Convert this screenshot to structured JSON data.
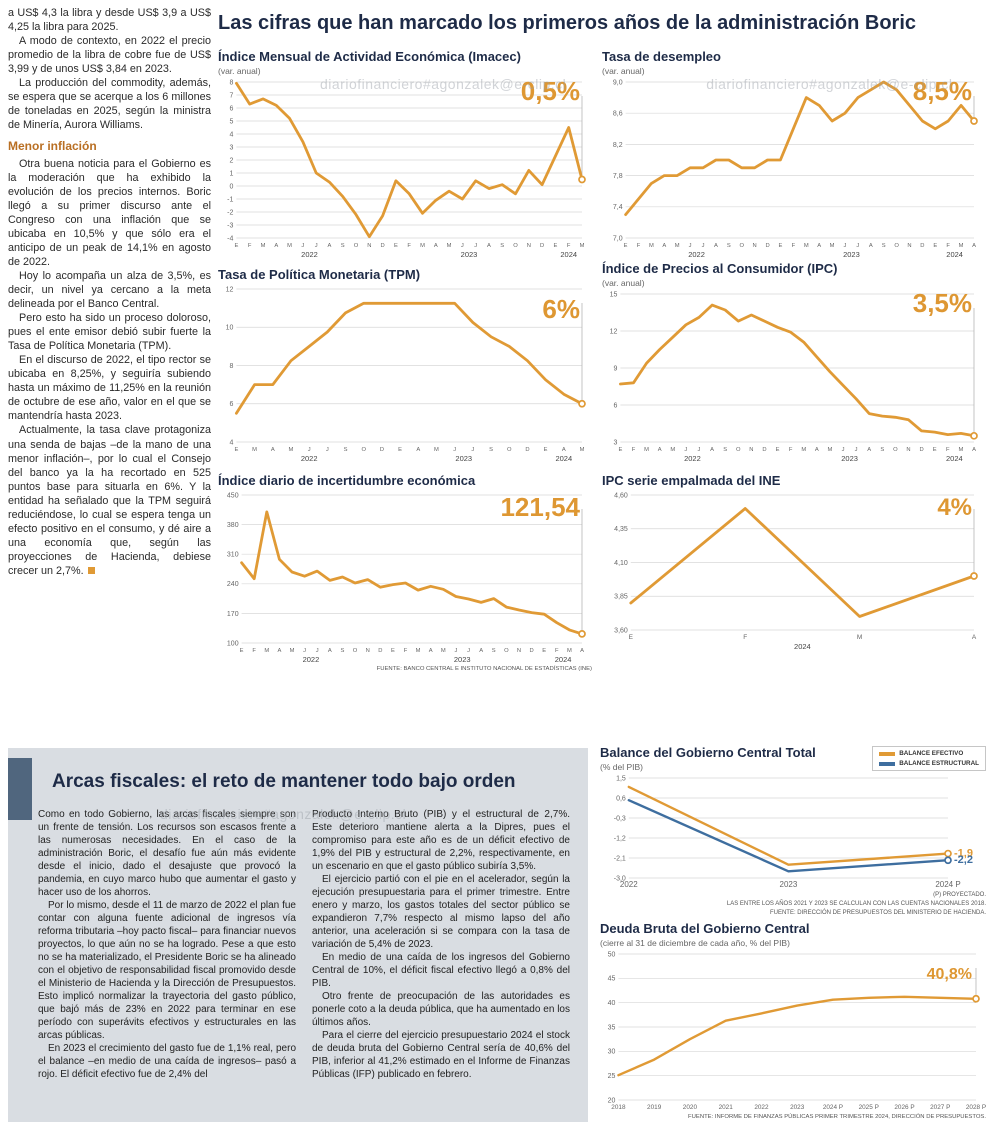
{
  "watermark": "diariofinanciero#agonzalek@e-clip.cl",
  "headline": "Las cifras que han marcado los primeros años de la administración Boric",
  "intro": {
    "paragraphs": [
      "a US$ 4,3 la libra y desde US$ 3,9 a US$ 4,25 la libra para 2025.",
      "A modo de contexto, en 2022 el precio promedio de la libra de cobre fue de US$ 3,99 y de unos US$ 3,84 en 2023.",
      "La producción del commodity, además, se espera que se acerque a los 6 millones de toneladas en 2025, según la ministra de Minería, Aurora Williams."
    ],
    "subhead": "Menor inflación",
    "paragraphs2": [
      "Otra buena noticia para el Gobierno es la moderación que ha exhibido la evolución de los precios internos. Boric llegó a su primer discurso ante el Congreso con una inflación que se ubicaba en 10,5% y que sólo era el anticipo de un peak de 14,1% en agosto de 2022.",
      "Hoy lo acompaña un alza de 3,5%, es decir, un nivel ya cercano a la meta delineada por el Banco Central.",
      "Pero esto ha sido un proceso doloroso, pues el ente emisor debió subir fuerte la Tasa de Política Monetaria (TPM).",
      "En el discurso de 2022, el tipo rector se ubicaba en 8,25%, y seguiría subiendo hasta un máximo de 11,25% en la reunión de octubre de ese año, valor en el que se mantendría hasta 2023.",
      "Actualmente, la tasa clave protagoniza una senda de bajas –de la mano de una menor inflación–, por lo cual el Consejo del banco ya la ha recortado en 525 puntos base para situarla en 6%. Y la entidad ha señalado que la TPM seguirá reduciéndose, lo cual se espera tenga un efecto positivo en el consumo, y dé aire a una economía que, según las proyecciones de Hacienda, debiese crecer un 2,7%."
    ]
  },
  "fiscal": {
    "title": "Arcas fiscales: el reto de mantener todo bajo orden",
    "col1": [
      "Como en todo Gobierno, las arcas fiscales siempre son un frente de tensión. Los recursos son escasos frente a las numerosas necesidades. En el caso de la administración Boric, el desafío fue aún más evidente desde el inicio, dado el desajuste que provocó la pandemia, en cuyo marco hubo que aumentar el gasto y hacer uso de los ahorros.",
      "Por lo mismo, desde el 11 de marzo de 2022 el plan fue contar con alguna fuente adicional de ingresos vía reforma tributaria –hoy pacto fiscal– para financiar nuevos proyectos, lo que aún no se ha logrado. Pese a que esto no se ha materializado, el Presidente Boric se ha alineado con el objetivo de responsabilidad fiscal promovido desde el Ministerio de Hacienda y la Dirección de Presupuestos. Esto implicó normalizar la trayectoria del gasto público, que bajó más de 23% en 2022 para terminar en ese período con superávits efectivos y estructurales en las arcas públicas.",
      "En 2023 el crecimiento del gasto fue de 1,1% real, pero el balance –en medio de una caída de ingresos– pasó a rojo. El déficit efectivo fue de 2,4% del"
    ],
    "col2": [
      "Producto Interno Bruto (PIB) y el estructural de 2,7%. Este deterioro mantiene alerta a la Dipres, pues el compromiso para este año es de un déficit efectivo de 1,9% del PIB y estructural de 2,2%, respectivamente, en un escenario en que el gasto público subiría 3,5%.",
      "El ejercicio partió con el pie en el acelerador, según la ejecución presupuestaria para el primer trimestre. Entre enero y marzo, los gastos totales del sector público se expandieron 7,7% respecto al mismo lapso del año anterior, una aceleración si se compara con la tasa de variación de 5,4% de 2023.",
      "En medio de una caída de los ingresos del Gobierno Central de 10%, el déficit fiscal efectivo llegó a 0,8% del PIB.",
      "Otro frente de preocupación de las autoridades es ponerle coto a la deuda pública, que ha aumentado en los últimos años.",
      "Para el cierre del ejercicio presupuestario 2024 el stock de deuda bruta del Gobierno Central sería de 40,6% del PIB, inferior al 41,2% estimado en el Informe de Finanzas Públicas (IFP) publicado en febrero."
    ]
  },
  "colors": {
    "orange": "#E09A35",
    "blue": "#3E6E9F",
    "headline": "#1E2B47"
  },
  "chart_data": [
    {
      "id": "imacec",
      "type": "line",
      "title": "Índice Mensual de Actividad Económica (Imacec)",
      "subtitle": "(var. anual)",
      "highlight": "0,5%",
      "color": "#E09A35",
      "ylim": [
        -4,
        8
      ],
      "yticks": [
        "8",
        "7",
        "6",
        "5",
        "4",
        "3",
        "2",
        "1",
        "0",
        "-1",
        "-2",
        "-3",
        "-4"
      ],
      "x_labels": [
        "E",
        "F",
        "M",
        "A",
        "M",
        "J",
        "J",
        "A",
        "S",
        "O",
        "N",
        "D",
        "E",
        "F",
        "M",
        "A",
        "M",
        "J",
        "J",
        "A",
        "S",
        "O",
        "N",
        "D",
        "E",
        "F",
        "M"
      ],
      "years": [
        {
          "label": "2022",
          "start": 0,
          "end": 11
        },
        {
          "label": "2023",
          "start": 12,
          "end": 23
        },
        {
          "label": "2024",
          "start": 24,
          "end": 26
        }
      ],
      "values": [
        7.9,
        6.3,
        6.7,
        6.2,
        5.2,
        3.4,
        1.0,
        0.3,
        -0.8,
        -2.2,
        -3.9,
        -2.3,
        0.4,
        -0.6,
        -2.1,
        -1.1,
        -0.4,
        -1.0,
        0.4,
        -0.2,
        0.1,
        -0.6,
        1.2,
        0.1,
        2.3,
        4.5,
        0.5
      ]
    },
    {
      "id": "desempleo",
      "type": "line",
      "title": "Tasa de desempleo",
      "subtitle": "(var. anual)",
      "highlight": "8,5%",
      "color": "#E09A35",
      "ylim": [
        7.0,
        9.0
      ],
      "yticks": [
        "9,0",
        "8,6",
        "8,2",
        "7,8",
        "7,4",
        "7,0"
      ],
      "x_labels": [
        "E",
        "F",
        "M",
        "A",
        "M",
        "J",
        "J",
        "A",
        "S",
        "O",
        "N",
        "D",
        "E",
        "F",
        "M",
        "A",
        "M",
        "J",
        "J",
        "A",
        "S",
        "O",
        "N",
        "D",
        "E",
        "F",
        "M",
        "A"
      ],
      "years": [
        {
          "label": "2022",
          "start": 0,
          "end": 11
        },
        {
          "label": "2023",
          "start": 12,
          "end": 23
        },
        {
          "label": "2024",
          "start": 24,
          "end": 27
        }
      ],
      "values": [
        7.3,
        7.5,
        7.7,
        7.8,
        7.8,
        7.9,
        7.9,
        8.0,
        8.0,
        7.9,
        7.9,
        8.0,
        8.0,
        8.4,
        8.8,
        8.7,
        8.5,
        8.6,
        8.8,
        8.9,
        9.0,
        8.9,
        8.7,
        8.5,
        8.4,
        8.5,
        8.7,
        8.5
      ]
    },
    {
      "id": "tpm",
      "type": "line",
      "title": "Tasa de Política Monetaria (TPM)",
      "highlight": "6%",
      "color": "#E09A35",
      "ylim": [
        4,
        12
      ],
      "yticks": [
        "12",
        "10",
        "8",
        "6",
        "4"
      ],
      "x_labels": [
        "E",
        "M",
        "A",
        "M",
        "J",
        "J",
        "S",
        "O",
        "D",
        "E",
        "A",
        "M",
        "J",
        "J",
        "S",
        "O",
        "D",
        "E",
        "A",
        "M"
      ],
      "years": [
        {
          "label": "2022",
          "start": 0,
          "end": 8
        },
        {
          "label": "2023",
          "start": 9,
          "end": 16
        },
        {
          "label": "2024",
          "start": 17,
          "end": 19
        }
      ],
      "values": [
        5.5,
        7.0,
        7.0,
        8.25,
        9.0,
        9.75,
        10.75,
        11.25,
        11.25,
        11.25,
        11.25,
        11.25,
        11.25,
        10.25,
        9.5,
        9.0,
        8.25,
        7.25,
        6.5,
        6.0
      ]
    },
    {
      "id": "ipc",
      "type": "line",
      "title": "Índice de Precios al Consumidor (IPC)",
      "subtitle": "(var. anual)",
      "highlight": "3,5%",
      "color": "#E09A35",
      "ylim": [
        3,
        15
      ],
      "yticks": [
        "15",
        "12",
        "9",
        "6",
        "3"
      ],
      "x_labels": [
        "E",
        "F",
        "M",
        "A",
        "M",
        "J",
        "J",
        "A",
        "S",
        "O",
        "N",
        "D",
        "E",
        "F",
        "M",
        "A",
        "M",
        "J",
        "J",
        "A",
        "S",
        "O",
        "N",
        "D",
        "E",
        "F",
        "M",
        "A"
      ],
      "years": [
        {
          "label": "2022",
          "start": 0,
          "end": 11
        },
        {
          "label": "2023",
          "start": 12,
          "end": 23
        },
        {
          "label": "2024",
          "start": 24,
          "end": 27
        }
      ],
      "values": [
        7.7,
        7.8,
        9.4,
        10.5,
        11.5,
        12.5,
        13.1,
        14.1,
        13.7,
        12.8,
        13.3,
        12.8,
        12.3,
        11.9,
        11.1,
        9.9,
        8.7,
        7.6,
        6.5,
        5.3,
        5.1,
        5.0,
        4.8,
        3.9,
        3.8,
        3.6,
        3.7,
        3.5
      ]
    },
    {
      "id": "incert",
      "type": "line",
      "title": "Índice diario de incertidumbre económica",
      "highlight": "121,54",
      "color": "#E09A35",
      "source": "FUENTE: BANCO CENTRAL E INSTITUTO NACIONAL DE ESTADÍSTICAS (INE)",
      "ylim": [
        100,
        450
      ],
      "yticks": [
        "450",
        "380",
        "310",
        "240",
        "170",
        "100"
      ],
      "x_labels": [
        "E",
        "F",
        "M",
        "A",
        "M",
        "J",
        "J",
        "A",
        "S",
        "O",
        "N",
        "D",
        "E",
        "F",
        "M",
        "A",
        "M",
        "J",
        "J",
        "A",
        "S",
        "O",
        "N",
        "D",
        "E",
        "F",
        "M",
        "A"
      ],
      "years": [
        {
          "label": "2022",
          "start": 0,
          "end": 11
        },
        {
          "label": "2023",
          "start": 12,
          "end": 23
        },
        {
          "label": "2024",
          "start": 24,
          "end": 27
        }
      ],
      "values": [
        290,
        252,
        410,
        298,
        268,
        258,
        270,
        248,
        256,
        242,
        250,
        232,
        238,
        242,
        225,
        234,
        227,
        210,
        204,
        196,
        205,
        185,
        178,
        172,
        168,
        148,
        131,
        121.54
      ]
    },
    {
      "id": "empalmada",
      "type": "line",
      "title": "IPC serie empalmada del INE",
      "highlight": "4%",
      "color": "#E09A35",
      "xfs": 6.5,
      "ylim": [
        3.6,
        4.6
      ],
      "yticks": [
        "4,60",
        "4,35",
        "4,10",
        "3,85",
        "3,60"
      ],
      "x_labels": [
        "E",
        "F",
        "M",
        "A"
      ],
      "years": [
        {
          "label": "2024",
          "start": 0,
          "end": 3
        }
      ],
      "values": [
        3.8,
        4.5,
        3.7,
        4.0
      ]
    },
    {
      "id": "balance",
      "type": "line",
      "title": "Balance del Gobierno Central Total",
      "subtitle": "(% del PIB)",
      "legend": [
        {
          "label": "BALANCE EFECTIVO",
          "color": "#E09A35"
        },
        {
          "label": "BALANCE ESTRUCTURAL",
          "color": "#3E6E9F"
        }
      ],
      "ylim": [
        -3.0,
        1.5
      ],
      "mr": 38,
      "xfs": 8,
      "lw": 2.4,
      "yticks": [
        "1,5",
        "0,6",
        "-0,3",
        "-1,2",
        "-2,1",
        "-3,0"
      ],
      "x_labels": [
        "2022",
        "2023",
        "2024 P"
      ],
      "series": [
        {
          "name": "BALANCE EFECTIVO",
          "color": "#E09A35",
          "values": [
            1.1,
            -2.4,
            -1.9
          ],
          "end_label": "-1,9"
        },
        {
          "name": "BALANCE ESTRUCTURAL",
          "color": "#3E6E9F",
          "values": [
            0.5,
            -2.7,
            -2.2
          ],
          "end_label": "-2,2"
        }
      ],
      "notes": [
        "(P) PROYECTADO.",
        "LAS ENTRE LOS AÑOS 2021 Y 2023 SE CALCULAN CON LAS CUENTAS NACIONALES 2018.",
        "FUENTE: DIRECCIÓN DE PRESUPUESTOS DEL MINISTERIO DE HACIENDA."
      ]
    },
    {
      "id": "deuda",
      "type": "line",
      "title": "Deuda Bruta del Gobierno Central",
      "subtitle": "(cierre al 31 de diciembre de cada año, % del PIB)",
      "highlight": "40,8%",
      "color": "#E09A35",
      "xfs": 6.4,
      "lw": 2.4,
      "source": "FUENTE: INFORME DE FINANZAS PÚBLICAS PRIMER TRIMESTRE 2024, DIRECCIÓN DE PRESUPUESTOS.",
      "ylim": [
        20,
        50
      ],
      "yticks": [
        "50",
        "45",
        "40",
        "35",
        "30",
        "25",
        "20"
      ],
      "x_labels": [
        "2018",
        "2019",
        "2020",
        "2021",
        "2022",
        "2023",
        "2024 P",
        "2025 P",
        "2026 P",
        "2027 P",
        "2028 P"
      ],
      "values": [
        25.1,
        28.3,
        32.5,
        36.3,
        37.8,
        39.4,
        40.6,
        41.0,
        41.2,
        41.0,
        40.8
      ]
    }
  ]
}
